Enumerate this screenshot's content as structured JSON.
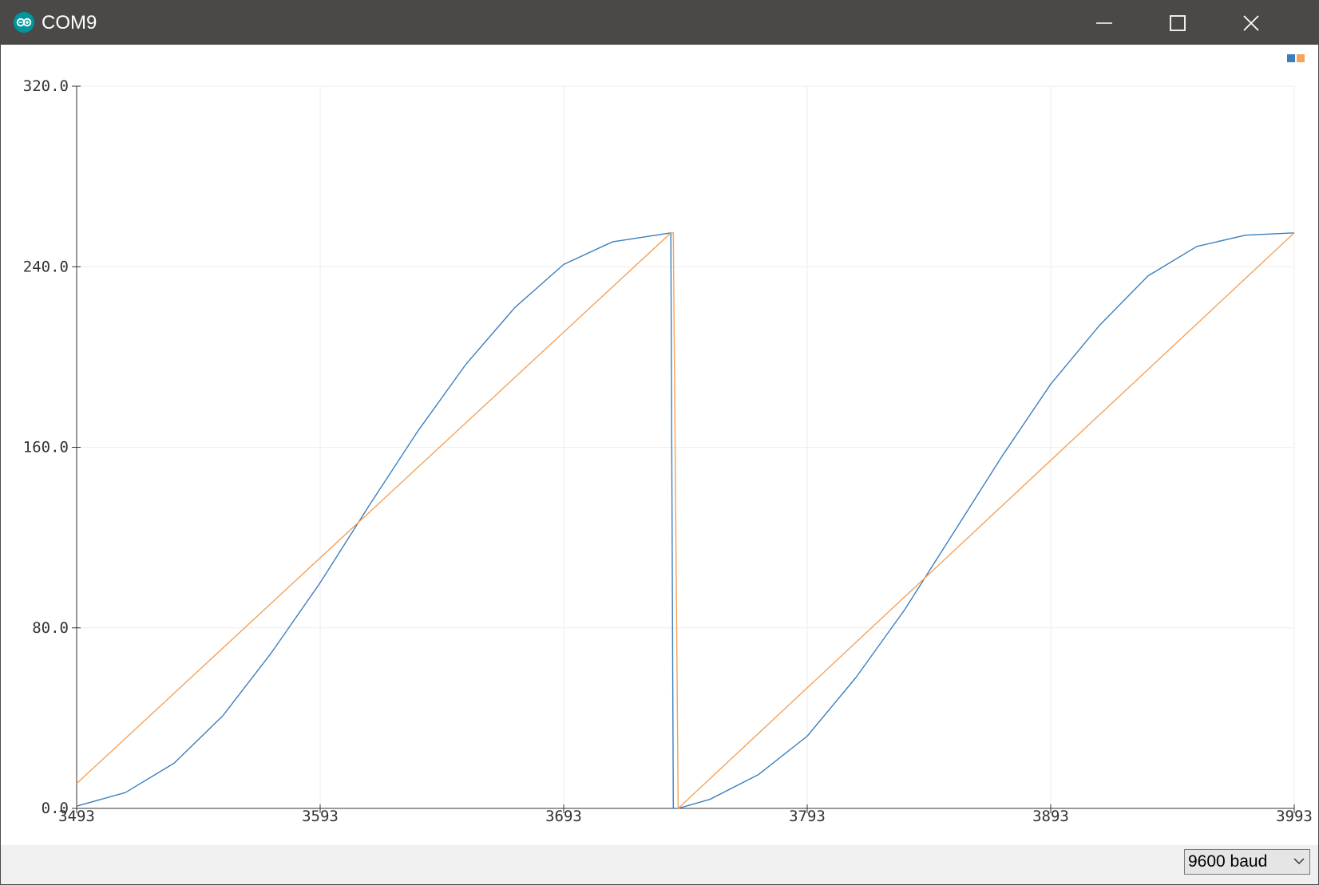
{
  "window": {
    "title": "COM9",
    "icon": "arduino-logo-icon",
    "buttons": [
      "minimize-icon",
      "maximize-icon",
      "close-icon"
    ]
  },
  "chart_data": {
    "type": "line",
    "title": "",
    "xlabel": "",
    "ylabel": "",
    "xlim": [
      3493,
      3993
    ],
    "ylim": [
      0,
      320
    ],
    "x_ticks": [
      "3493",
      "3593",
      "3693",
      "3793",
      "3893",
      "3993"
    ],
    "y_ticks": [
      "0.0",
      "80.0",
      "160.0",
      "240.0",
      "320.0"
    ],
    "grid": true,
    "legend_position": "top-right",
    "series": [
      {
        "color": "#3b7fbf",
        "x": [
          3493,
          3513,
          3533,
          3553,
          3573,
          3593,
          3613,
          3633,
          3653,
          3673,
          3693,
          3713,
          3737,
          3738,
          3740,
          3753,
          3773,
          3793,
          3813,
          3833,
          3853,
          3873,
          3893,
          3913,
          3933,
          3953,
          3973,
          3993
        ],
        "values": [
          1,
          7,
          20,
          41,
          69,
          100,
          134,
          167,
          197,
          222,
          241,
          251,
          255,
          0,
          0,
          4,
          15,
          32,
          58,
          88,
          122,
          156,
          188,
          214,
          236,
          249,
          254,
          255
        ]
      },
      {
        "color": "#f5a25b",
        "x": [
          3493,
          3737,
          3738,
          3740,
          3993
        ],
        "values": [
          11,
          255,
          255,
          0,
          255
        ]
      }
    ]
  },
  "status": {
    "baud_rate": "9600 baud",
    "dropdown_icon": "chevron-down-icon"
  }
}
